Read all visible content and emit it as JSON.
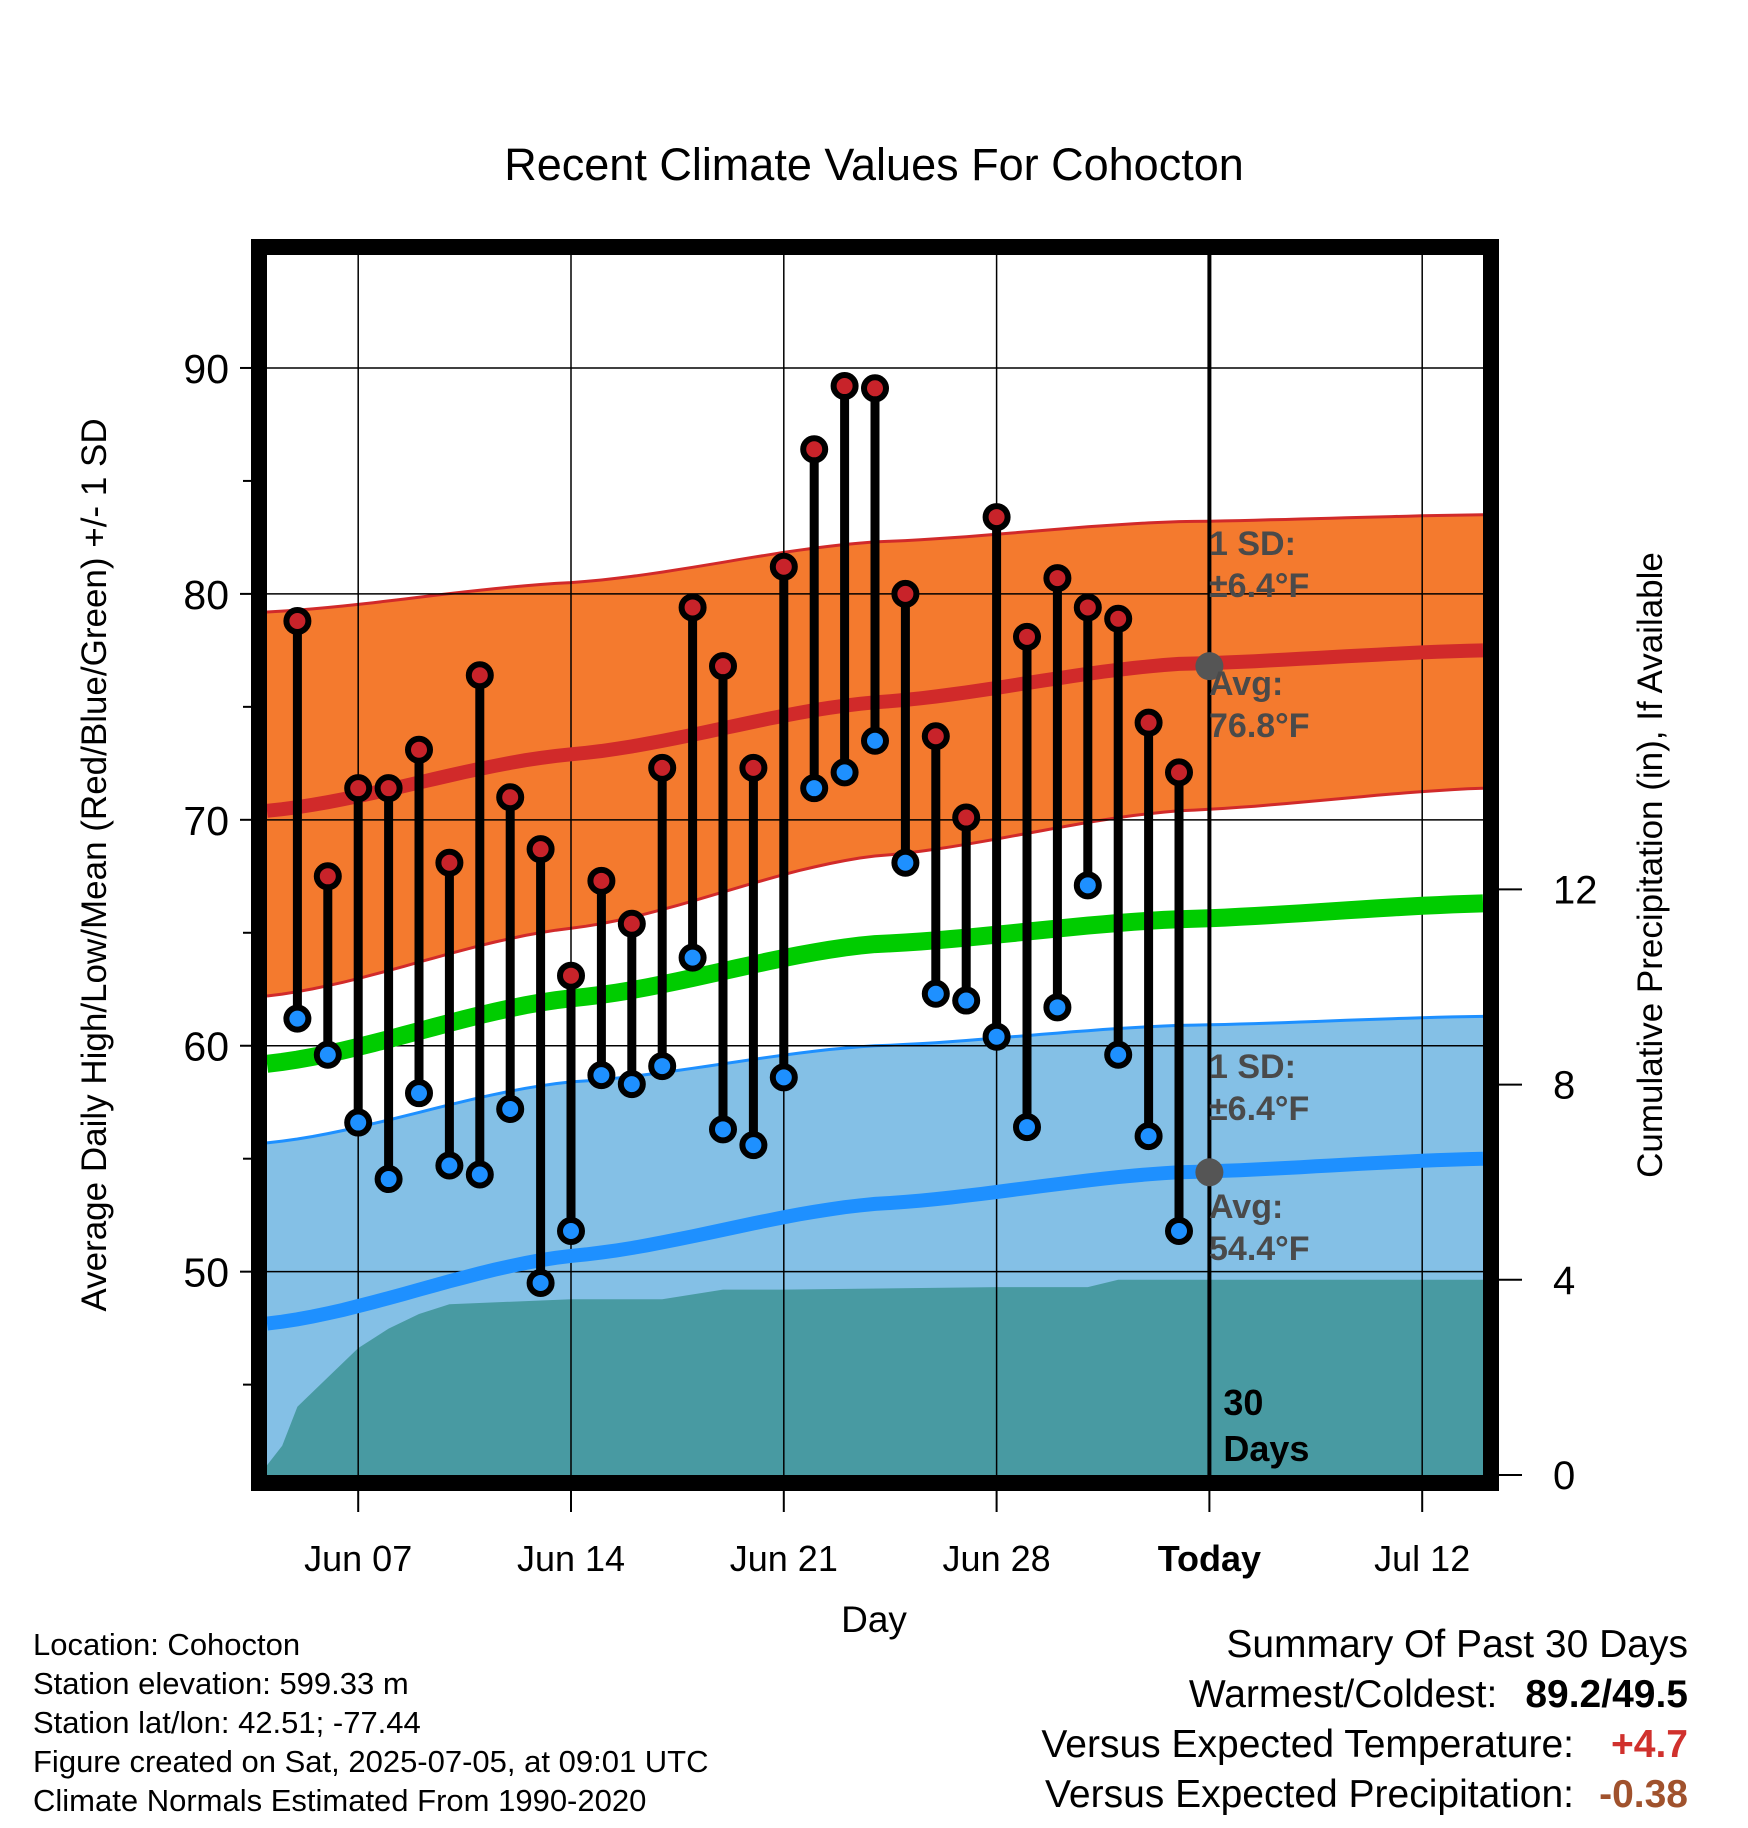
{
  "chart_data": {
    "type": "line",
    "title": "Recent Climate Values For Cohocton",
    "xlabel": "Day",
    "ylabel": "Average Daily High/Low/Mean (Red/Blue/Green) +/- 1 SD",
    "y2label": "Cumulative Precipitation (in), If Available",
    "ylim": [
      41,
      95
    ],
    "y2lim": [
      0,
      25
    ],
    "yticks": [
      50,
      60,
      70,
      80,
      90
    ],
    "y2ticks": [
      0,
      4,
      8,
      12
    ],
    "xlim": [
      "2025-06-04",
      "2025-07-14"
    ],
    "xticks": [
      {
        "date": "2025-06-07",
        "label": "Jun 07"
      },
      {
        "date": "2025-06-14",
        "label": "Jun 14"
      },
      {
        "date": "2025-06-21",
        "label": "Jun 21"
      },
      {
        "date": "2025-06-28",
        "label": "Jun 28"
      },
      {
        "date": "2025-07-05",
        "label": "Today"
      },
      {
        "date": "2025-07-12",
        "label": "Jul 12"
      }
    ],
    "grid": true,
    "today": "2025-07-05",
    "days_label": "30\nDays",
    "normals": {
      "dates": [
        "2025-06-04",
        "2025-06-14",
        "2025-06-24",
        "2025-07-04",
        "2025-07-14"
      ],
      "high_avg": [
        70.4,
        72.9,
        75.2,
        76.9,
        77.5
      ],
      "high_sd_upper": [
        79.2,
        80.5,
        82.3,
        83.2,
        83.5
      ],
      "high_sd_lower": [
        62.2,
        65.2,
        68.4,
        70.4,
        71.4
      ],
      "mean_avg": [
        59.2,
        62.1,
        64.5,
        65.6,
        66.3
      ],
      "low_avg": [
        47.7,
        50.7,
        53.0,
        54.4,
        55.0
      ],
      "low_sd_upper": [
        55.7,
        58.4,
        60.0,
        60.9,
        61.3
      ],
      "high_label": "1 SD:\n±6.4°F",
      "high_avg_label": "Avg:\n76.8°F",
      "low_label": "1 SD:\n±6.4°F",
      "low_avg_label": "Avg:\n54.4°F",
      "today_high": 76.8,
      "today_low": 54.4
    },
    "series": [
      {
        "name": "High",
        "x": [
          "2025-06-05",
          "2025-06-06",
          "2025-06-07",
          "2025-06-08",
          "2025-06-09",
          "2025-06-10",
          "2025-06-11",
          "2025-06-12",
          "2025-06-13",
          "2025-06-14",
          "2025-06-15",
          "2025-06-16",
          "2025-06-17",
          "2025-06-18",
          "2025-06-19",
          "2025-06-20",
          "2025-06-21",
          "2025-06-22",
          "2025-06-23",
          "2025-06-24",
          "2025-06-25",
          "2025-06-26",
          "2025-06-27",
          "2025-06-28",
          "2025-06-29",
          "2025-06-30",
          "2025-07-01",
          "2025-07-02",
          "2025-07-03",
          "2025-07-04"
        ],
        "values": [
          78.8,
          67.5,
          71.4,
          71.4,
          73.1,
          68.1,
          76.4,
          71.0,
          68.7,
          63.1,
          67.3,
          65.4,
          72.3,
          79.4,
          76.8,
          72.3,
          81.2,
          86.4,
          89.2,
          89.1,
          80.0,
          73.7,
          70.1,
          83.4,
          78.1,
          80.7,
          79.4,
          78.9,
          74.3,
          72.1
        ]
      },
      {
        "name": "Low",
        "x": [
          "2025-06-05",
          "2025-06-06",
          "2025-06-07",
          "2025-06-08",
          "2025-06-09",
          "2025-06-10",
          "2025-06-11",
          "2025-06-12",
          "2025-06-13",
          "2025-06-14",
          "2025-06-15",
          "2025-06-16",
          "2025-06-17",
          "2025-06-18",
          "2025-06-19",
          "2025-06-20",
          "2025-06-21",
          "2025-06-22",
          "2025-06-23",
          "2025-06-24",
          "2025-06-25",
          "2025-06-26",
          "2025-06-27",
          "2025-06-28",
          "2025-06-29",
          "2025-06-30",
          "2025-07-01",
          "2025-07-02",
          "2025-07-03",
          "2025-07-04"
        ],
        "values": [
          61.2,
          59.6,
          56.6,
          54.1,
          57.9,
          54.7,
          54.3,
          57.2,
          49.5,
          51.8,
          58.7,
          58.3,
          59.1,
          63.9,
          56.3,
          55.6,
          58.6,
          71.4,
          72.1,
          73.5,
          68.1,
          62.3,
          62.0,
          60.4,
          56.4,
          61.7,
          67.1,
          59.6,
          56.0,
          51.8
        ]
      }
    ],
    "precipitation": {
      "dates": [
        "2025-06-04",
        "2025-06-04.5",
        "2025-06-05",
        "2025-06-06",
        "2025-06-07",
        "2025-06-08",
        "2025-06-09",
        "2025-06-10",
        "2025-06-14",
        "2025-06-17",
        "2025-06-19",
        "2025-06-21",
        "2025-06-28",
        "2025-07-01",
        "2025-07-02",
        "2025-07-14"
      ],
      "values": [
        0.2,
        0.6,
        1.4,
        2.0,
        2.6,
        3.0,
        3.3,
        3.5,
        3.6,
        3.6,
        3.8,
        3.8,
        3.85,
        3.85,
        4.0,
        4.0
      ]
    },
    "colors": {
      "high_band": "#f47a2e",
      "high_line": "#d12a2a",
      "mean_line": "#00cc00",
      "low_band": "#84c0e6",
      "low_line": "#1e90ff",
      "precip": "#489aa2",
      "high_marker": "#c8232a",
      "low_marker": "#1e90ff",
      "label_gray": "#4a4a4a"
    }
  },
  "footer": {
    "location": "Location: Cohocton",
    "elevation": "Station elevation: 599.33 m",
    "latlon": "Station lat/lon: 42.51; -77.44",
    "created": "Figure created on Sat, 2025-07-05, at 09:01 UTC",
    "normals": "Climate Normals Estimated From 1990-2020"
  },
  "summary": {
    "title": "Summary Of Past 30 Days",
    "warm_cold_label": "Warmest/Coldest:",
    "warm_cold_value": "89.2/49.5",
    "temp_label": "Versus Expected Temperature:",
    "temp_value": "+4.7",
    "precip_label": "Versus Expected Precipitation:",
    "precip_value": "-0.38"
  }
}
